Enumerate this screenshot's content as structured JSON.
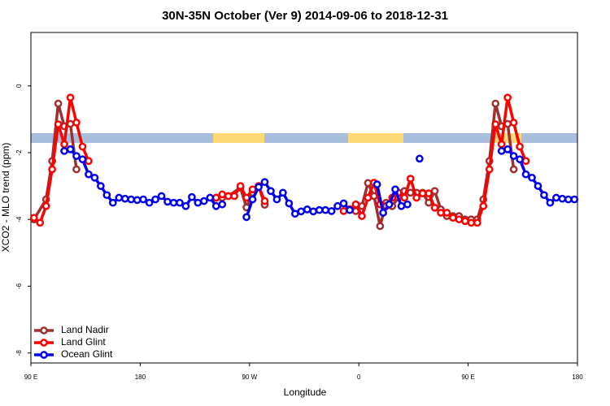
{
  "chart_data": {
    "type": "line",
    "title": "30N-35N October (Ver 9)   2014-09-06 to 2018-12-31",
    "x_label": "Longitude",
    "y_label": "XCO2 - MLO trend (ppm)",
    "xlim": [
      90,
      540
    ],
    "xticks": [
      {
        "value": 90,
        "label": "90 E"
      },
      {
        "value": 180,
        "label": "180"
      },
      {
        "value": 270,
        "label": "90 W"
      },
      {
        "value": 360,
        "label": "0"
      },
      {
        "value": 450,
        "label": "90 E"
      },
      {
        "value": 540,
        "label": "180"
      }
    ],
    "ylim": [
      -8.3,
      1.6
    ],
    "yticks": [
      0,
      -2,
      -4,
      -6,
      -8
    ],
    "legend": "bottom-left",
    "series": [
      {
        "name": "Land Nadir",
        "color": "#a03030",
        "x": [
          92.5,
          102.5,
          107.5,
          112.5,
          117.5,
          122.5,
          127.5,
          null,
          242.5,
          247.5,
          252.5,
          262.5,
          267.5,
          272.5,
          277.5,
          282.5,
          null,
          352.5,
          357.5,
          362.5,
          367.5,
          372.5,
          377.5,
          382.5,
          387.5,
          392.5,
          397.5,
          402.5,
          407.5,
          412.5,
          417.5,
          422.5,
          427.5,
          432.5,
          437.5,
          442.5,
          447.5,
          452.5,
          457.5,
          462.5,
          467.5,
          472.5,
          477.5,
          482.5,
          487.5
        ],
        "values": [
          -4.0,
          -3.4,
          -2.25,
          -0.53,
          -1.21,
          -1.14,
          -2.5,
          null,
          -3.35,
          -3.35,
          -3.3,
          -3.05,
          -3.64,
          -3.2,
          -3.0,
          -3.56,
          null,
          -3.7,
          -3.75,
          -3.6,
          -2.91,
          -3.3,
          -4.2,
          -3.5,
          -3.6,
          -3.35,
          -3.15,
          -3.2,
          -3.2,
          -3.2,
          -3.5,
          -3.15,
          -3.7,
          -3.9,
          -3.9,
          -3.9,
          -4.0,
          -4.0,
          -4.0,
          -3.4,
          -2.25,
          -0.53,
          -1.21,
          -1.14,
          -2.5
        ]
      },
      {
        "name": "Land Glint",
        "color": "#ff0000",
        "x": [
          92.5,
          97.5,
          102.5,
          107.5,
          112.5,
          117.5,
          122.5,
          127.5,
          132.5,
          137.5,
          null,
          242.5,
          247.5,
          252.5,
          257.5,
          262.5,
          267.5,
          272.5,
          277.5,
          282.5,
          null,
          347.5,
          352.5,
          357.5,
          362.5,
          367.5,
          372.5,
          377.5,
          382.5,
          387.5,
          392.5,
          397.5,
          402.5,
          407.5,
          412.5,
          417.5,
          422.5,
          427.5,
          432.5,
          437.5,
          442.5,
          447.5,
          452.5,
          457.5,
          462.5,
          467.5,
          472.5,
          477.5,
          482.5,
          487.5,
          492.5,
          497.5
        ],
        "values": [
          -3.95,
          -4.1,
          -3.6,
          -2.5,
          -1.15,
          -1.75,
          -0.35,
          -1.1,
          -1.82,
          -2.25,
          null,
          -3.35,
          -3.25,
          -3.3,
          -3.3,
          -3.0,
          -3.35,
          -3.1,
          -3.0,
          -3.45,
          null,
          -3.75,
          -3.7,
          -3.55,
          -3.9,
          -3.35,
          -2.9,
          -3.55,
          -3.6,
          -3.35,
          -3.2,
          -3.35,
          -2.78,
          -3.35,
          -3.22,
          -3.22,
          -3.65,
          -3.8,
          -3.8,
          -3.95,
          -4.0,
          -4.05,
          -4.1,
          -4.1,
          -3.6,
          -2.5,
          -1.15,
          -1.75,
          -0.35,
          -1.1,
          -1.82,
          -2.25
        ]
      },
      {
        "name": "Ocean Glint",
        "color": "#0000ee",
        "x": [
          117.5,
          122.5,
          127.5,
          132.5,
          137.5,
          142.5,
          147.5,
          152.5,
          157.5,
          162.5,
          167.5,
          172.5,
          177.5,
          182.5,
          187.5,
          192.5,
          197.5,
          202.5,
          207.5,
          212.5,
          217.5,
          222.5,
          227.5,
          232.5,
          237.5,
          242.5,
          247.5,
          null,
          267.5,
          272.5,
          277.5,
          282.5,
          287.5,
          292.5,
          297.5,
          302.5,
          307.5,
          312.5,
          317.5,
          322.5,
          327.5,
          332.5,
          337.5,
          342.5,
          347.5,
          352.5,
          null,
          375,
          380,
          385,
          390,
          395,
          400,
          null,
          410,
          null,
          477.5,
          482.5,
          487.5,
          492.5,
          497.5,
          502.5,
          507.5,
          512.5,
          517.5,
          522.5,
          527.5,
          532.5,
          537.5
        ],
        "values": [
          -1.95,
          -1.9,
          -2.1,
          -2.2,
          -2.65,
          -2.75,
          -3.0,
          -3.27,
          -3.5,
          -3.35,
          -3.38,
          -3.4,
          -3.42,
          -3.4,
          -3.5,
          -3.4,
          -3.3,
          -3.47,
          -3.5,
          -3.5,
          -3.6,
          -3.33,
          -3.5,
          -3.45,
          -3.35,
          -3.6,
          -3.55,
          null,
          -3.93,
          -3.4,
          -3.03,
          -2.88,
          -3.15,
          -3.4,
          -3.2,
          -3.52,
          -3.83,
          -3.76,
          -3.7,
          -3.76,
          -3.72,
          -3.72,
          -3.75,
          -3.6,
          -3.52,
          -3.72,
          null,
          -2.95,
          -3.8,
          -3.55,
          -3.1,
          -3.6,
          -3.55,
          null,
          -2.18,
          null,
          -1.95,
          -1.9,
          -2.1,
          -2.2,
          -2.65,
          -2.75,
          -3.0,
          -3.27,
          -3.5,
          -3.35,
          -3.38,
          -3.4,
          -3.4
        ]
      }
    ]
  }
}
